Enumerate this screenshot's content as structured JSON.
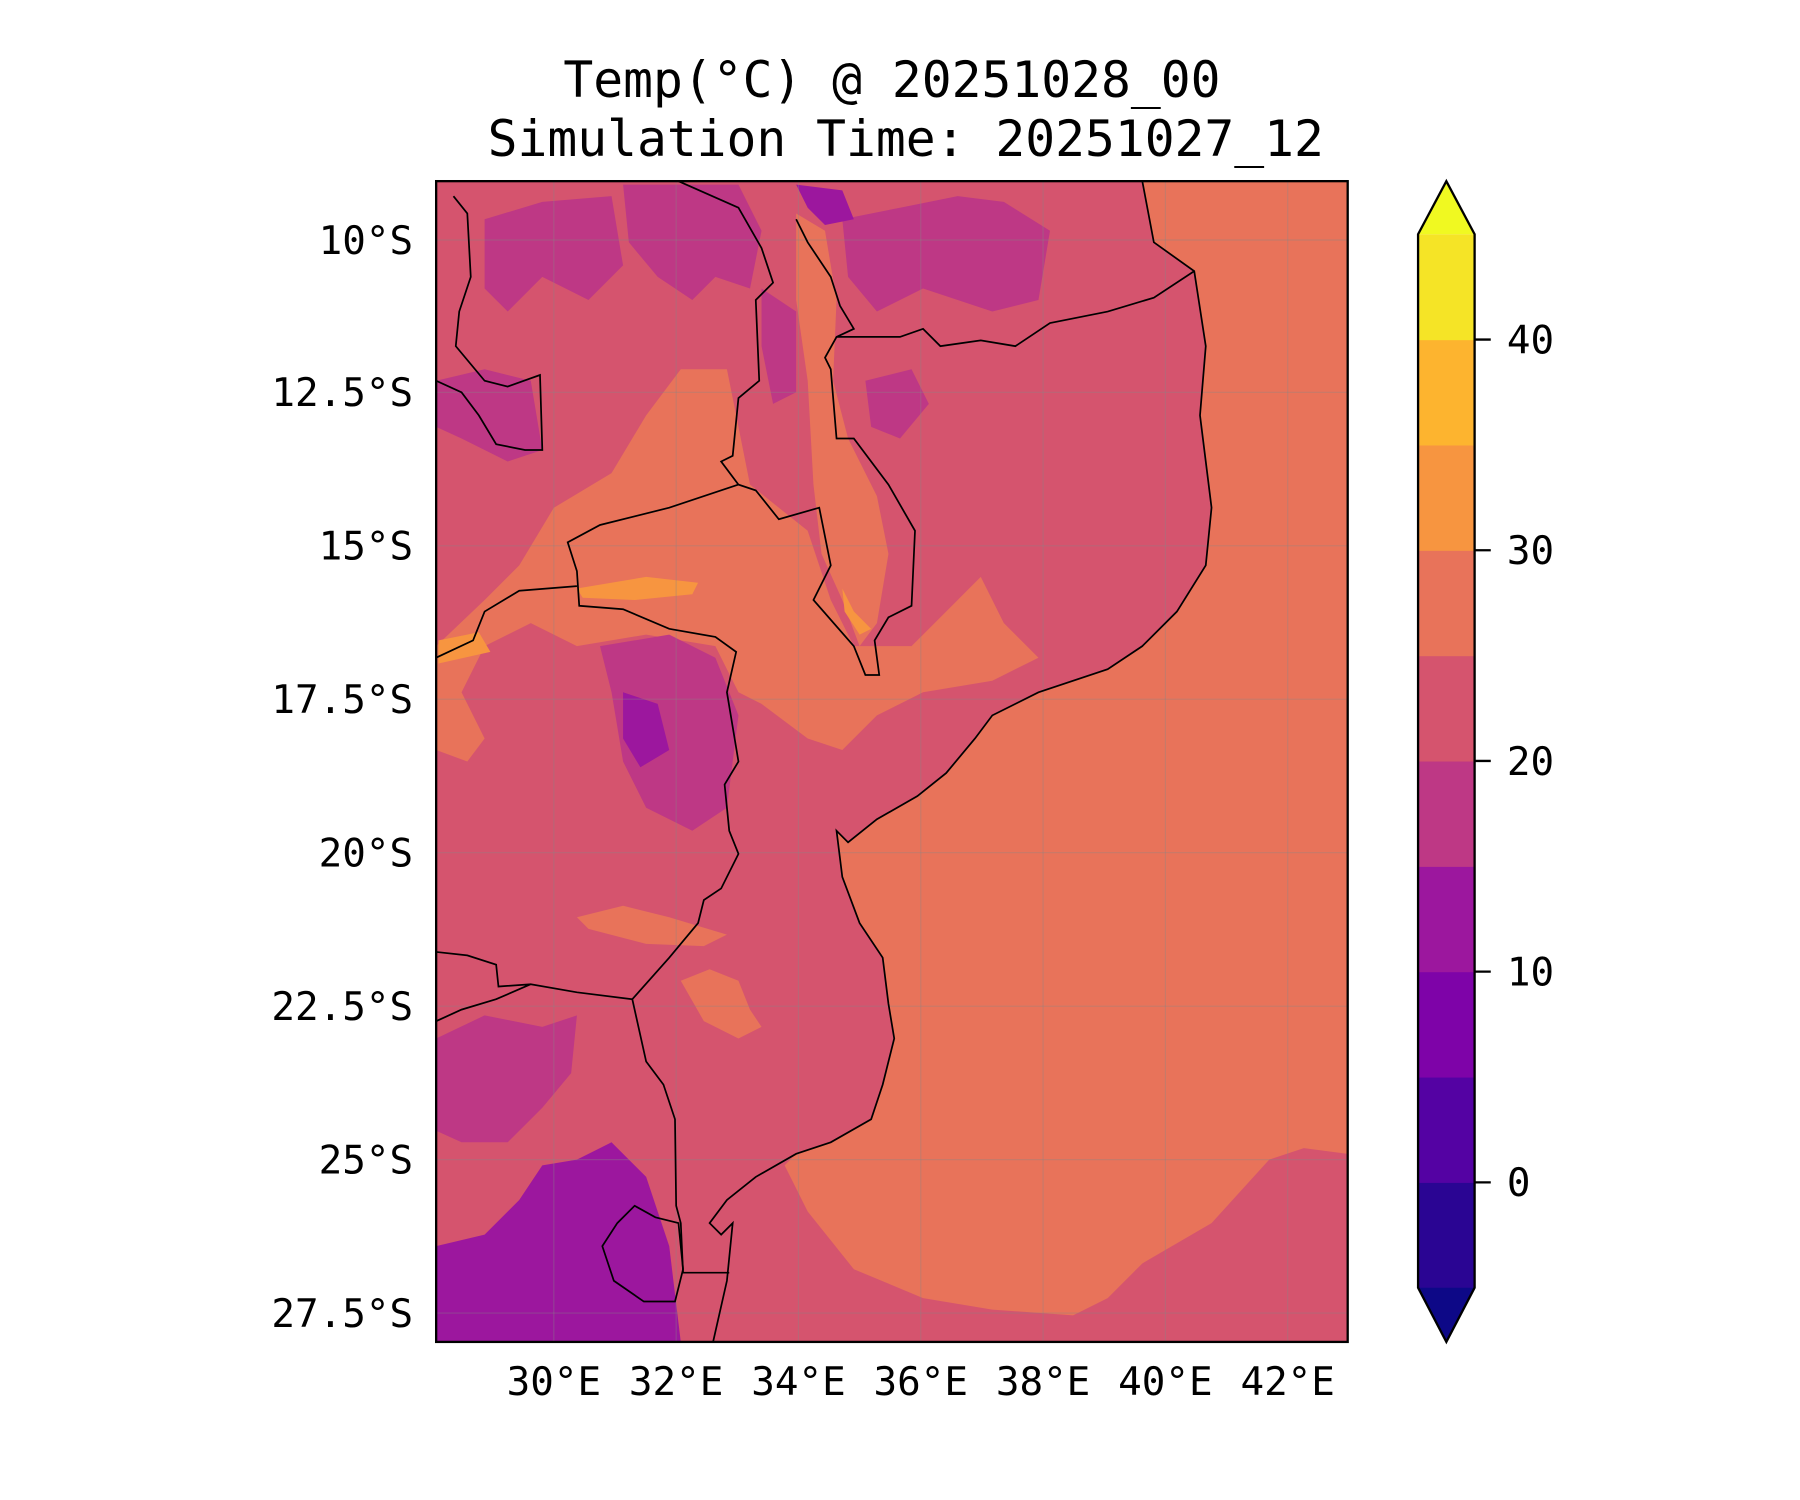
{
  "chart_data": {
    "type": "heatmap",
    "subtype": "filled-contour-map",
    "title_line1": "Temp(°C) @ 20251028_00",
    "title_line2": "Simulation Time: 20251027_12",
    "variable": "Temp(°C)",
    "valid_time": "20251028_00",
    "simulation_time": "20251027_12",
    "xlim": [
      28.07,
      42.98
    ],
    "ylim": [
      -27.97,
      -9.04
    ],
    "x_ticks": [
      {
        "value": 30,
        "label": "30°E"
      },
      {
        "value": 32,
        "label": "32°E"
      },
      {
        "value": 34,
        "label": "34°E"
      },
      {
        "value": 36,
        "label": "36°E"
      },
      {
        "value": 38,
        "label": "38°E"
      },
      {
        "value": 40,
        "label": "40°E"
      },
      {
        "value": 42,
        "label": "42°E"
      }
    ],
    "y_ticks": [
      {
        "value": -10,
        "label": "10°S"
      },
      {
        "value": -12.5,
        "label": "12.5°S"
      },
      {
        "value": -15,
        "label": "15°S"
      },
      {
        "value": -17.5,
        "label": "17.5°S"
      },
      {
        "value": -20,
        "label": "20°S"
      },
      {
        "value": -22.5,
        "label": "22.5°S"
      },
      {
        "value": -25,
        "label": "25°S"
      },
      {
        "value": -27.5,
        "label": "27.5°S"
      }
    ],
    "grid": true,
    "colorbar": {
      "placement": "right",
      "extend": "both",
      "levels": [
        -5,
        0,
        5,
        10,
        15,
        20,
        25,
        30,
        35,
        40,
        45
      ],
      "colors": [
        "#2a0593",
        "#5402a3",
        "#7e03a8",
        "#9c179e",
        "#be3885",
        "#d5546e",
        "#e8735a",
        "#f79540",
        "#fdb42f",
        "#f5e426"
      ],
      "under_color": "#0d0887",
      "over_color": "#f0f921",
      "ticks": [
        {
          "value": 0,
          "label": "0"
        },
        {
          "value": 10,
          "label": "10"
        },
        {
          "value": 20,
          "label": "20"
        },
        {
          "value": 30,
          "label": "30"
        },
        {
          "value": 40,
          "label": "40"
        }
      ]
    },
    "field_summary": {
      "ocean_band": [
        25,
        30
      ],
      "land_dominant_band": [
        20,
        25
      ],
      "coastal_south_band": [
        20,
        25
      ]
    }
  }
}
